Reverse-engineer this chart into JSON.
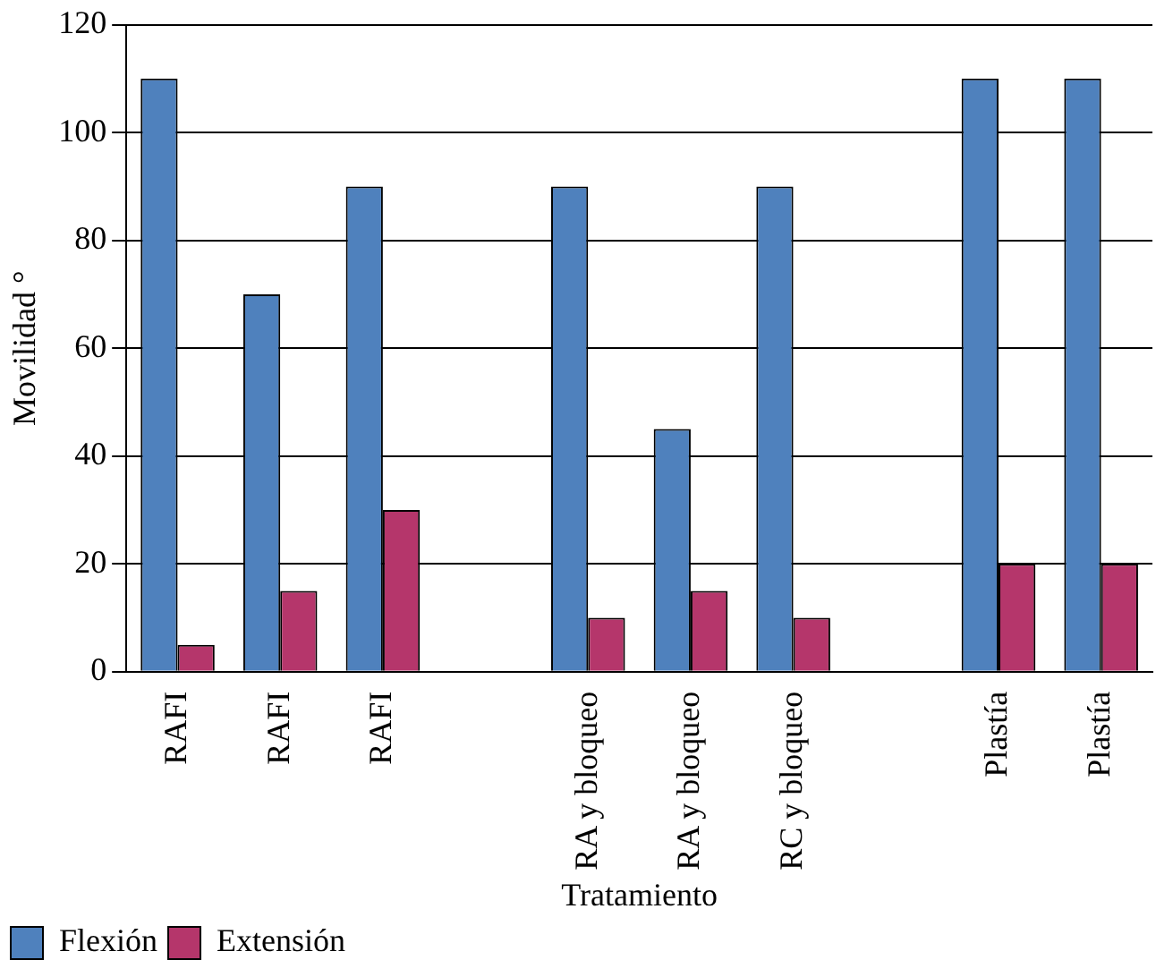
{
  "chart_data": {
    "type": "bar",
    "xlabel": "Tratamiento",
    "ylabel": "Movilidad °",
    "categories": [
      "RAFI",
      "RAFI",
      "RAFI",
      null,
      "RA y bloqueo",
      "RA y bloqueo",
      "RC y bloqueo",
      null,
      "Plastía",
      "Plastía"
    ],
    "series": [
      {
        "name": "Flexión",
        "color": "#4f81bd",
        "values": [
          110,
          70,
          90,
          null,
          90,
          45,
          90,
          null,
          110,
          110
        ]
      },
      {
        "name": "Extensión",
        "color": "#b5366b",
        "values": [
          5,
          15,
          30,
          null,
          10,
          15,
          10,
          null,
          20,
          20
        ]
      }
    ],
    "ylim": [
      0,
      120
    ],
    "yticks": [
      0,
      20,
      40,
      60,
      80,
      100,
      120
    ],
    "grid": "y",
    "legend": "bottom left"
  }
}
